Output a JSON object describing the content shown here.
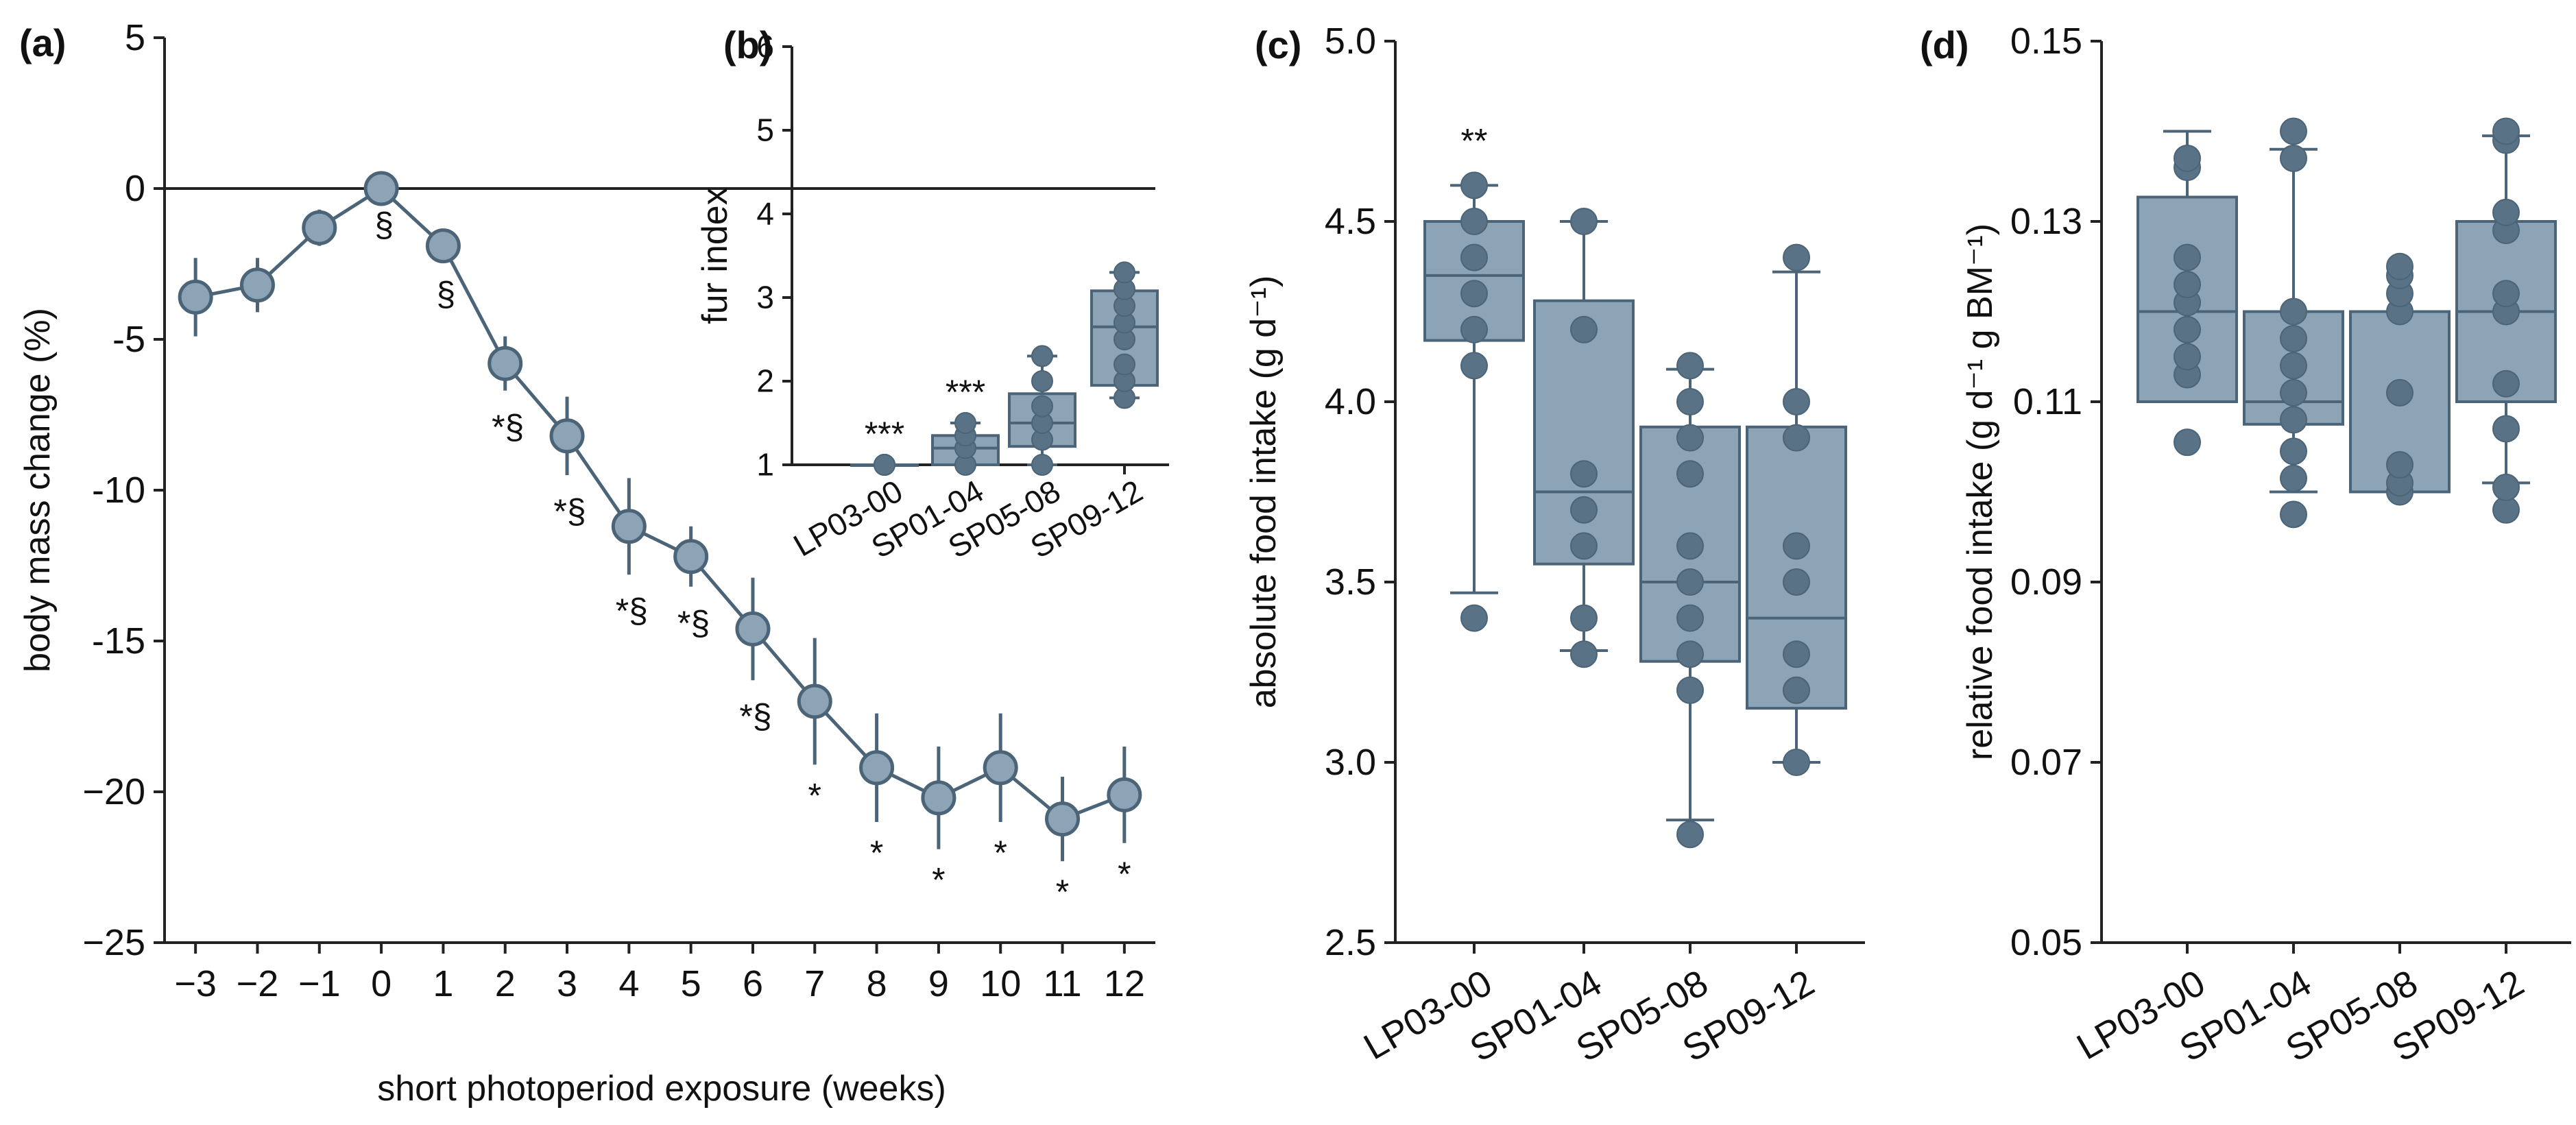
{
  "chart_data": [
    {
      "panel": "(a)",
      "type": "line",
      "xlabel": "short photoperiod exposure (weeks)",
      "ylabel": "body mass change (%)",
      "xlim": [
        -3.5,
        12.5
      ],
      "ylim": [
        -25,
        5
      ],
      "xticks": [
        -3,
        -2,
        -1,
        0,
        1,
        2,
        3,
        4,
        5,
        6,
        7,
        8,
        9,
        10,
        11,
        12
      ],
      "xtick_labels": [
        "−3",
        "−2",
        "−1",
        "0",
        "1",
        "2",
        "3",
        "4",
        "5",
        "6",
        "7",
        "8",
        "9",
        "10",
        "11",
        "12"
      ],
      "yticks": [
        5,
        0,
        -5,
        -10,
        -15,
        -20,
        -25
      ],
      "ytick_labels": [
        "5",
        "0",
        "-5",
        "-10",
        "-15",
        "−20",
        "−25"
      ],
      "series": [
        {
          "name": "body mass change",
          "x": [
            -3,
            -2,
            -1,
            0,
            1,
            2,
            3,
            4,
            5,
            6,
            7,
            8,
            9,
            10,
            11,
            12
          ],
          "y": [
            -3.6,
            -3.2,
            -1.3,
            0,
            -1.9,
            -5.8,
            -8.2,
            -11.2,
            -12.2,
            -14.6,
            -17.0,
            -19.2,
            -20.2,
            -19.2,
            -20.9,
            -20.1
          ],
          "error": [
            1.3,
            0.9,
            0.6,
            0,
            0.4,
            0.9,
            1.3,
            1.6,
            1.0,
            1.7,
            2.1,
            1.8,
            1.7,
            1.8,
            1.4,
            1.6
          ],
          "annotations": [
            "",
            "",
            "",
            "§",
            "§",
            "*§",
            "*§",
            "*§",
            "*§",
            "*§",
            "*",
            "*",
            "*",
            "*",
            "*",
            "*"
          ]
        }
      ]
    },
    {
      "panel": "(b)",
      "type": "box",
      "ylabel": "fur index",
      "ylim": [
        1,
        6
      ],
      "yticks": [
        1,
        2,
        3,
        4,
        5,
        6
      ],
      "ytick_labels": [
        "1",
        "2",
        "3",
        "4",
        "5",
        "6"
      ],
      "categories": [
        "LP03-00",
        "SP01-04",
        "SP05-08",
        "SP09-12"
      ],
      "boxes": [
        {
          "min": 1.0,
          "q1": 1.0,
          "median": 1.0,
          "q3": 1.0,
          "max": 1.0
        },
        {
          "min": 1.0,
          "q1": 1.0,
          "median": 1.2,
          "q3": 1.35,
          "max": 1.5
        },
        {
          "min": 1.0,
          "q1": 1.22,
          "median": 1.5,
          "q3": 1.85,
          "max": 2.3
        },
        {
          "min": 1.8,
          "q1": 1.95,
          "median": 2.65,
          "q3": 3.08,
          "max": 3.3
        }
      ],
      "points": [
        [
          1.0,
          1.0,
          1.0
        ],
        [
          1.0,
          1.2,
          1.35,
          1.5
        ],
        [
          1.0,
          1.3,
          1.5,
          1.7,
          2.0,
          2.3
        ],
        [
          1.8,
          2.0,
          2.2,
          2.5,
          2.7,
          2.9,
          3.1,
          3.3
        ]
      ],
      "significance": [
        "***",
        "***",
        "",
        ""
      ]
    },
    {
      "panel": "(c)",
      "type": "box",
      "ylabel": "absolute food intake (g d⁻¹)",
      "ylim": [
        2.5,
        5.0
      ],
      "yticks": [
        2.5,
        3.0,
        3.5,
        4.0,
        4.5,
        5.0
      ],
      "ytick_labels": [
        "2.5",
        "3.0",
        "3.5",
        "4.0",
        "4.5",
        "5.0"
      ],
      "categories": [
        "LP03-00",
        "SP01-04",
        "SP05-08",
        "SP09-12"
      ],
      "boxes": [
        {
          "min": 3.47,
          "q1": 4.17,
          "median": 4.35,
          "q3": 4.5,
          "max": 4.6
        },
        {
          "min": 3.31,
          "q1": 3.55,
          "median": 3.75,
          "q3": 4.28,
          "max": 4.5
        },
        {
          "min": 2.84,
          "q1": 3.28,
          "median": 3.5,
          "q3": 3.93,
          "max": 4.09
        },
        {
          "min": 3.0,
          "q1": 3.15,
          "median": 3.4,
          "q3": 3.93,
          "max": 4.36
        }
      ],
      "points": [
        [
          3.4,
          4.1,
          4.2,
          4.3,
          4.4,
          4.5,
          4.6
        ],
        [
          3.3,
          3.4,
          3.6,
          3.7,
          3.8,
          4.2,
          4.5
        ],
        [
          2.8,
          3.2,
          3.3,
          3.4,
          3.5,
          3.6,
          3.8,
          3.9,
          4.0,
          4.1
        ],
        [
          3.0,
          3.2,
          3.3,
          3.5,
          3.6,
          3.9,
          4.0,
          4.4
        ]
      ],
      "significance": [
        "**",
        "",
        "",
        ""
      ]
    },
    {
      "panel": "(d)",
      "type": "box",
      "ylabel": "relative food intake (g d⁻¹ g BM⁻¹)",
      "ylim": [
        0.05,
        0.15
      ],
      "yticks": [
        0.05,
        0.07,
        0.09,
        0.11,
        0.13,
        0.15
      ],
      "ytick_labels": [
        "0.05",
        "0.07",
        "0.09",
        "0.11",
        "0.13",
        "0.15"
      ],
      "categories": [
        "LP03-00",
        "SP01-04",
        "SP05-08",
        "SP09-12"
      ],
      "boxes": [
        {
          "min": 0.11,
          "q1": 0.11,
          "median": 0.12,
          "q3": 0.1327,
          "max": 0.14
        },
        {
          "min": 0.1,
          "q1": 0.1075,
          "median": 0.11,
          "q3": 0.12,
          "max": 0.138
        },
        {
          "min": 0.1,
          "q1": 0.1,
          "median": 0.1,
          "q3": 0.12,
          "max": 0.12
        },
        {
          "min": 0.101,
          "q1": 0.11,
          "median": 0.12,
          "q3": 0.13,
          "max": 0.1395
        }
      ],
      "points": [
        [
          0.1055,
          0.113,
          0.115,
          0.118,
          0.121,
          0.123,
          0.126,
          0.136,
          0.137
        ],
        [
          0.0975,
          0.1015,
          0.1045,
          0.108,
          0.111,
          0.114,
          0.117,
          0.12,
          0.137,
          0.14
        ],
        [
          0.1,
          0.101,
          0.103,
          0.111,
          0.12,
          0.122,
          0.124,
          0.125
        ],
        [
          0.098,
          0.1005,
          0.107,
          0.112,
          0.12,
          0.122,
          0.129,
          0.131,
          0.139,
          0.14
        ]
      ],
      "significance": [
        "",
        "",
        "",
        ""
      ]
    }
  ]
}
